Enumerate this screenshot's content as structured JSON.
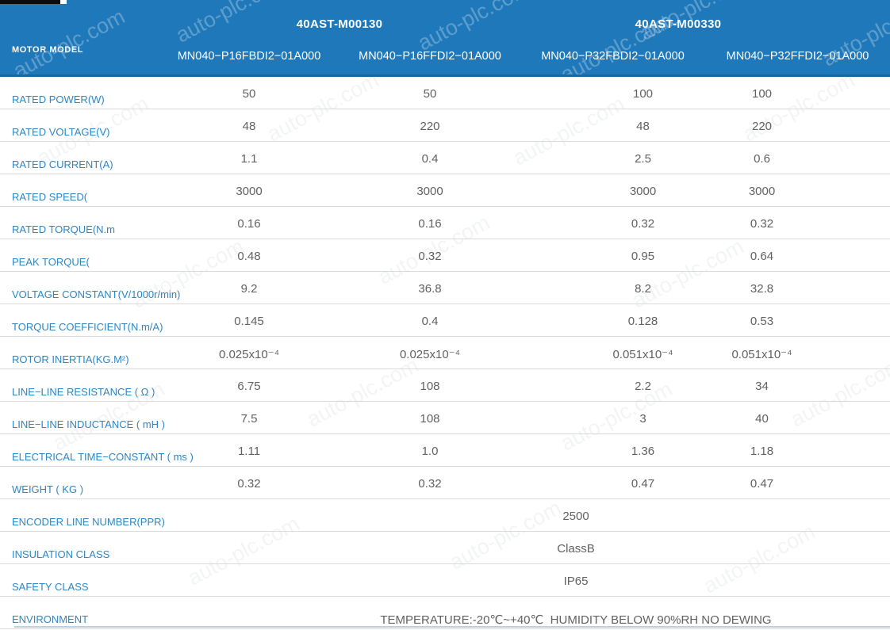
{
  "watermark": {
    "text": "auto-plc.com"
  },
  "header": {
    "row_label": "MOTOR MODEL",
    "groups": [
      {
        "title": "40AST-M00130",
        "models": [
          "MN040−P16FBDI2−01A000",
          "MN040−P16FFDI2−01A000"
        ]
      },
      {
        "title": "40AST-M00330",
        "models": [
          "MN040−P32FBDI2−01A000",
          "MN040−P32FFDI2−01A000"
        ]
      }
    ]
  },
  "table": {
    "rows": [
      {
        "label": "RATED POWER(W)",
        "values": [
          "50",
          "50",
          "100",
          "100"
        ]
      },
      {
        "label": "RATED VOLTAGE(V)",
        "values": [
          "48",
          "220",
          "48",
          "220"
        ]
      },
      {
        "label": "RATED CURRENT(A)",
        "values": [
          "1.1",
          "0.4",
          "2.5",
          "0.6"
        ]
      },
      {
        "label": "RATED SPEED(",
        "values": [
          "3000",
          "3000",
          "3000",
          "3000"
        ]
      },
      {
        "label": "RATED TORQUE(N.m",
        "values": [
          "0.16",
          "0.16",
          "0.32",
          "0.32"
        ]
      },
      {
        "label": "PEAK TORQUE(",
        "values": [
          "0.48",
          "0.32",
          "0.95",
          "0.64"
        ]
      },
      {
        "label": "VOLTAGE CONSTANT(V/1000r/min)",
        "values": [
          "9.2",
          "36.8",
          "8.2",
          "32.8"
        ]
      },
      {
        "label": "TORQUE COEFFICIENT(N.m/A)",
        "values": [
          "0.145",
          "0.4",
          "0.128",
          "0.53"
        ]
      },
      {
        "label": "ROTOR INERTIA(KG.M²)",
        "values": [
          "0.025x10⁻⁴",
          "0.025x10⁻⁴",
          "0.051x10⁻⁴",
          "0.051x10⁻⁴"
        ]
      },
      {
        "label": "LINE−LINE RESISTANCE ( Ω )",
        "values": [
          "6.75",
          "108",
          "2.2",
          "34"
        ]
      },
      {
        "label": "LINE−LINE INDUCTANCE ( mH )",
        "values": [
          "7.5",
          "108",
          "3",
          "40"
        ]
      },
      {
        "label": "ELECTRICAL TIME−CONSTANT ( ms )",
        "values": [
          "1.11",
          "1.0",
          "1.36",
          "1.18"
        ]
      },
      {
        "label": "WEIGHT ( KG )",
        "values": [
          "0.32",
          "0.32",
          "0.47",
          "0.47"
        ]
      },
      {
        "label": "ENCODER LINE NUMBER(PPR)",
        "merged": "2500"
      },
      {
        "label": "INSULATION CLASS",
        "merged": "ClassB"
      },
      {
        "label": "SAFETY CLASS",
        "merged": "IP65"
      },
      {
        "label": "ENVIRONMENT",
        "merged": "TEMPERATURE:-20℃~+40℃  HUMIDITY BELOW 90%RH NO DEWING",
        "env": true
      }
    ]
  },
  "colors": {
    "header_blue": "#1e78ba",
    "header_border": "#16689e",
    "label_blue": "#2e86c4",
    "value_gray": "#616161",
    "row_separator": "#dadada",
    "bottom_line": "#b9d0e2",
    "top_bar_black": "#0b0b0b"
  }
}
